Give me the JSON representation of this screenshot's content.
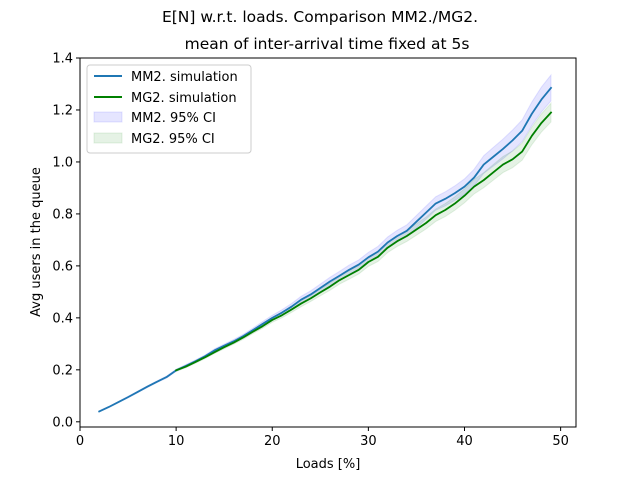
{
  "chart_data": {
    "type": "line",
    "title": "E[N] w.r.t. loads. Comparison MM2./MG2.",
    "subtitle": "mean of inter-arrival time fixed at 5s",
    "xlabel": "Loads [%]",
    "ylabel": "Avg users in the queue",
    "xlim": [
      0,
      51.6
    ],
    "ylim": [
      -0.02,
      1.4
    ],
    "xticks": [
      0,
      10,
      20,
      30,
      40,
      50
    ],
    "yticks": [
      0.0,
      0.2,
      0.4,
      0.6,
      0.8,
      1.0,
      1.2,
      1.4
    ],
    "grid": false,
    "legend_position": "top-left",
    "series": [
      {
        "name": "MM2. simulation",
        "color": "#1f77b4",
        "ci_name": "MM2. 95% CI",
        "ci_color": "#0000ff",
        "x": [
          2,
          3,
          4,
          5,
          6,
          7,
          8,
          9,
          10,
          11,
          12,
          13,
          14,
          15,
          16,
          17,
          18,
          19,
          20,
          21,
          22,
          23,
          24,
          25,
          26,
          27,
          28,
          29,
          30,
          31,
          32,
          33,
          34,
          35,
          36,
          37,
          38,
          39,
          40,
          41,
          42,
          43,
          44,
          45,
          46,
          47,
          48,
          49
        ],
        "y": [
          0.04,
          0.057,
          0.076,
          0.095,
          0.115,
          0.135,
          0.154,
          0.172,
          0.198,
          0.215,
          0.233,
          0.252,
          0.275,
          0.293,
          0.31,
          0.33,
          0.353,
          0.377,
          0.4,
          0.42,
          0.443,
          0.47,
          0.49,
          0.515,
          0.54,
          0.562,
          0.585,
          0.605,
          0.633,
          0.655,
          0.69,
          0.715,
          0.735,
          0.77,
          0.805,
          0.84,
          0.858,
          0.88,
          0.905,
          0.94,
          0.99,
          1.02,
          1.05,
          1.083,
          1.12,
          1.185,
          1.24,
          1.285
        ],
        "ci_half_width": [
          0.002,
          0.002,
          0.002,
          0.003,
          0.003,
          0.003,
          0.003,
          0.004,
          0.004,
          0.005,
          0.005,
          0.005,
          0.006,
          0.006,
          0.007,
          0.007,
          0.008,
          0.009,
          0.01,
          0.011,
          0.012,
          0.013,
          0.014,
          0.015,
          0.016,
          0.017,
          0.018,
          0.018,
          0.019,
          0.02,
          0.021,
          0.022,
          0.023,
          0.024,
          0.025,
          0.026,
          0.027,
          0.028,
          0.03,
          0.032,
          0.034,
          0.036,
          0.038,
          0.04,
          0.042,
          0.045,
          0.048,
          0.05
        ]
      },
      {
        "name": "MG2. simulation",
        "color": "#008000",
        "ci_name": "MG2. 95% CI",
        "ci_color": "#008000",
        "x": [
          10,
          11,
          12,
          13,
          14,
          15,
          16,
          17,
          18,
          19,
          20,
          21,
          22,
          23,
          24,
          25,
          26,
          27,
          28,
          29,
          30,
          31,
          32,
          33,
          34,
          35,
          36,
          37,
          38,
          39,
          40,
          41,
          42,
          43,
          44,
          45,
          46,
          47,
          48,
          49
        ],
        "y": [
          0.198,
          0.212,
          0.23,
          0.248,
          0.268,
          0.287,
          0.305,
          0.325,
          0.347,
          0.368,
          0.392,
          0.41,
          0.432,
          0.455,
          0.475,
          0.498,
          0.52,
          0.545,
          0.565,
          0.585,
          0.615,
          0.635,
          0.67,
          0.695,
          0.715,
          0.74,
          0.765,
          0.795,
          0.815,
          0.84,
          0.87,
          0.905,
          0.93,
          0.96,
          0.99,
          1.01,
          1.04,
          1.1,
          1.15,
          1.19
        ],
        "ci_half_width": [
          0.004,
          0.004,
          0.005,
          0.005,
          0.005,
          0.006,
          0.006,
          0.007,
          0.007,
          0.008,
          0.009,
          0.01,
          0.011,
          0.012,
          0.012,
          0.013,
          0.014,
          0.015,
          0.016,
          0.016,
          0.017,
          0.018,
          0.019,
          0.02,
          0.021,
          0.022,
          0.023,
          0.024,
          0.025,
          0.026,
          0.027,
          0.028,
          0.029,
          0.03,
          0.031,
          0.032,
          0.033,
          0.034,
          0.035,
          0.036
        ]
      }
    ]
  }
}
